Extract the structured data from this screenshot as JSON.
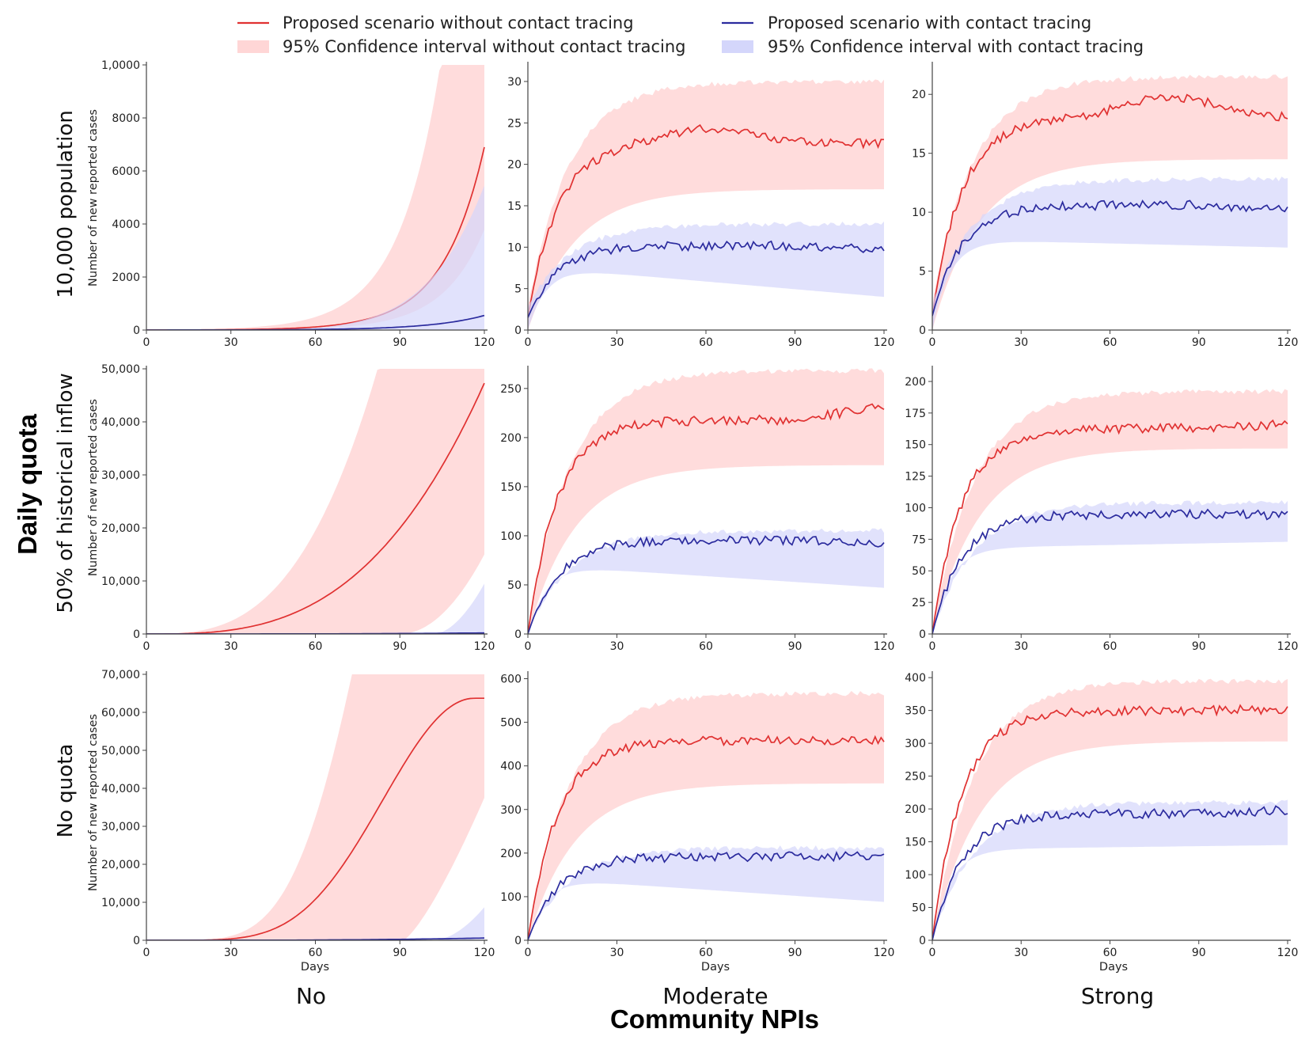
{
  "colors": {
    "red_line": "#e03131",
    "red_band": "#ffd6d6",
    "blue_line": "#2b2b9e",
    "blue_band": "#d4d6fb",
    "axis": "#444444"
  },
  "legend": {
    "red_line_label": "Proposed scenario without contact tracing",
    "red_band_label": "95% Confidence interval without contact tracing",
    "blue_line_label": "Proposed scenario with contact tracing",
    "blue_band_label": "95% Confidence interval with contact tracing"
  },
  "labels": {
    "y_group_title": "Daily quota",
    "x_group_title": "Community NPIs",
    "y_axis_title": "Number of new reported cases",
    "x_axis_title": "Days",
    "rows": [
      "10,000 population",
      "50% of historical inflow",
      "No quota"
    ],
    "cols": [
      "No",
      "Moderate",
      "Strong"
    ]
  },
  "chart_data": [
    {
      "row": 0,
      "col": 0,
      "type": "line",
      "xlim": [
        0,
        120
      ],
      "ylim": [
        0,
        10000
      ],
      "xticks": [
        0,
        30,
        60,
        90,
        120
      ],
      "yticks": [
        0,
        2000,
        4000,
        6000,
        8000,
        10000
      ],
      "ytick_labels": [
        "0",
        "2000",
        "4000",
        "6000",
        "8000",
        "1,0000"
      ],
      "series": [
        {
          "name": "Proposed scenario without contact tracing",
          "shape": "exp",
          "start": 2,
          "end": 6900,
          "noise": 0,
          "band_lo": "0.55*x",
          "band_hi": 10000
        },
        {
          "name": "Proposed scenario with contact tracing",
          "shape": "exp",
          "start": 1,
          "end": 550,
          "noise": 0,
          "band_lo": 0,
          "band_hi_end": 5450
        }
      ]
    },
    {
      "row": 0,
      "col": 1,
      "type": "line",
      "xlim": [
        0,
        120
      ],
      "ylim": [
        0,
        32
      ],
      "xticks": [
        0,
        30,
        60,
        90,
        120
      ],
      "yticks": [
        0,
        5,
        10,
        15,
        20,
        25,
        30
      ],
      "series": [
        {
          "name": "Proposed scenario without contact tracing",
          "shape": "sat",
          "start": 1.5,
          "plateau": 22.5,
          "peak_day": 60,
          "peak": 24.3,
          "end": 22.5,
          "band_lo_end": 17,
          "band_hi_end": 30
        },
        {
          "name": "Proposed scenario with contact tracing",
          "shape": "sat",
          "start": 1.5,
          "plateau": 10.2,
          "end": 9.8,
          "band_lo_end": 4,
          "band_hi_end": 12.8
        }
      ]
    },
    {
      "row": 0,
      "col": 2,
      "type": "line",
      "xlim": [
        0,
        120
      ],
      "ylim": [
        0,
        22.5
      ],
      "xticks": [
        0,
        30,
        60,
        90,
        120
      ],
      "yticks": [
        0,
        5,
        10,
        15,
        20
      ],
      "series": [
        {
          "name": "Proposed scenario without contact tracing",
          "shape": "sat",
          "start": 1.2,
          "plateau": 18,
          "peak": 19.8,
          "end": 18,
          "band_lo_end": 14.5,
          "band_hi_end": 21.5
        },
        {
          "name": "Proposed scenario with contact tracing",
          "shape": "sat",
          "start": 1.2,
          "plateau": 10.6,
          "end": 10.3,
          "band_lo_end": 7,
          "band_hi_end": 12.8
        }
      ]
    },
    {
      "row": 1,
      "col": 0,
      "type": "line",
      "xlim": [
        0,
        120
      ],
      "ylim": [
        0,
        50000
      ],
      "xticks": [
        0,
        30,
        60,
        90,
        120
      ],
      "yticks": [
        0,
        10000,
        20000,
        30000,
        40000,
        50000
      ],
      "ytick_labels": [
        "0",
        "10,000",
        "20,000",
        "30,000",
        "40,000",
        "50,000"
      ],
      "series": [
        {
          "name": "Proposed scenario without contact tracing",
          "shape": "power",
          "start": 0,
          "end": 47300,
          "band_hi": 50000,
          "band_lo_end": 15000
        },
        {
          "name": "Proposed scenario with contact tracing",
          "shape": "power",
          "start": 0,
          "end": 200,
          "band_lo": 0,
          "band_hi_end": 9500
        }
      ]
    },
    {
      "row": 1,
      "col": 1,
      "type": "line",
      "xlim": [
        0,
        120
      ],
      "ylim": [
        0,
        270
      ],
      "xticks": [
        0,
        30,
        60,
        90,
        120
      ],
      "yticks": [
        0,
        50,
        100,
        150,
        200,
        250
      ],
      "series": [
        {
          "name": "Proposed scenario without contact tracing",
          "shape": "sat",
          "start": 0,
          "plateau": 218,
          "end": 232,
          "band_lo_end": 172,
          "band_hi_end": 268
        },
        {
          "name": "Proposed scenario with contact tracing",
          "shape": "sat",
          "start": 0,
          "plateau": 95,
          "end": 93,
          "band_lo_end": 47,
          "band_hi_end": 105
        }
      ]
    },
    {
      "row": 1,
      "col": 2,
      "type": "line",
      "xlim": [
        0,
        120
      ],
      "ylim": [
        0,
        210
      ],
      "xticks": [
        0,
        30,
        60,
        90,
        120
      ],
      "yticks": [
        0,
        25,
        50,
        75,
        100,
        125,
        150,
        175,
        200
      ],
      "series": [
        {
          "name": "Proposed scenario without contact tracing",
          "shape": "sat",
          "start": 0,
          "plateau": 163,
          "end": 166,
          "band_lo_end": 147,
          "band_hi_end": 192
        },
        {
          "name": "Proposed scenario with contact tracing",
          "shape": "sat",
          "start": 0,
          "plateau": 95,
          "end": 94,
          "band_lo_end": 73,
          "band_hi_end": 104
        }
      ]
    },
    {
      "row": 2,
      "col": 0,
      "type": "line",
      "xlim": [
        0,
        120
      ],
      "ylim": [
        0,
        70000
      ],
      "xticks": [
        0,
        30,
        60,
        90,
        120
      ],
      "yticks": [
        0,
        10000,
        20000,
        30000,
        40000,
        50000,
        60000,
        70000
      ],
      "ytick_labels": [
        "0",
        "10,000",
        "20,000",
        "30,000",
        "40,000",
        "50,000",
        "60,000",
        "70,000"
      ],
      "series": [
        {
          "name": "Proposed scenario without contact tracing",
          "shape": "logistic",
          "start": 0,
          "end": 63700,
          "band_hi": 70000,
          "band_lo_end": 37500
        },
        {
          "name": "Proposed scenario with contact tracing",
          "shape": "power",
          "start": 0,
          "end": 600,
          "band_lo": 0,
          "band_hi_end": 8700
        }
      ]
    },
    {
      "row": 2,
      "col": 1,
      "type": "line",
      "xlim": [
        0,
        120
      ],
      "ylim": [
        0,
        610
      ],
      "xticks": [
        0,
        30,
        60,
        90,
        120
      ],
      "yticks": [
        0,
        100,
        200,
        300,
        400,
        500,
        600
      ],
      "series": [
        {
          "name": "Proposed scenario without contact tracing",
          "shape": "sat",
          "start": 0,
          "plateau": 458,
          "end": 458,
          "band_lo_end": 360,
          "band_hi_end": 566
        },
        {
          "name": "Proposed scenario with contact tracing",
          "shape": "sat",
          "start": 0,
          "plateau": 192,
          "end": 193,
          "band_lo_end": 88,
          "band_hi_end": 212
        }
      ]
    },
    {
      "row": 2,
      "col": 2,
      "type": "line",
      "xlim": [
        0,
        120
      ],
      "ylim": [
        0,
        405
      ],
      "xticks": [
        0,
        30,
        60,
        90,
        120
      ],
      "yticks": [
        0,
        50,
        100,
        150,
        200,
        250,
        300,
        350,
        400
      ],
      "series": [
        {
          "name": "Proposed scenario without contact tracing",
          "shape": "sat",
          "start": 0,
          "plateau": 350,
          "end": 352,
          "band_lo_end": 303,
          "band_hi_end": 395
        },
        {
          "name": "Proposed scenario with contact tracing",
          "shape": "sat",
          "start": 0,
          "plateau": 193,
          "end": 198,
          "band_lo_end": 145,
          "band_hi_end": 210
        }
      ]
    }
  ]
}
